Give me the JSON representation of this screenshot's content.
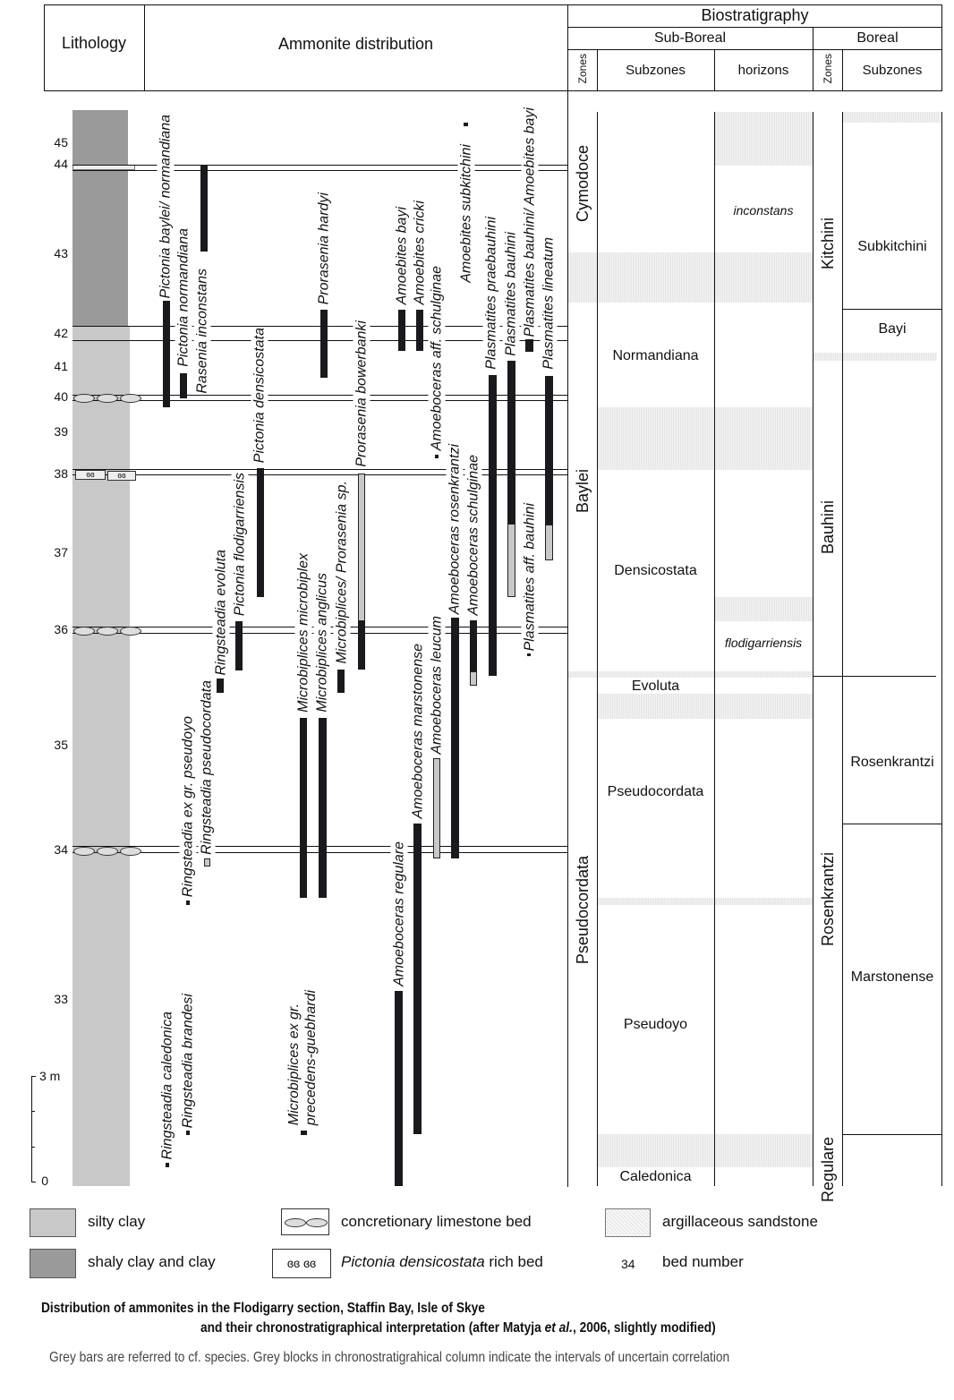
{
  "header": {
    "lithology": "Lithology",
    "ammonite_distribution": "Ammonite distribution",
    "biostratigraphy": "Biostratigraphy",
    "sub_boreal": "Sub-Boreal",
    "boreal": "Boreal",
    "zones": "Zones",
    "subzones": "Subzones",
    "horizons": "horizons",
    "zones2": "Zones",
    "subzones2": "Subzones"
  },
  "bed_numbers": [
    "45",
    "44",
    "43",
    "42",
    "41",
    "40",
    "39",
    "38",
    "37",
    "36",
    "35",
    "34",
    "33",
    "0"
  ],
  "scale_label": "3 m",
  "species": [
    "Pictonia baylei/ normandiana",
    "Pictonia normandiana",
    "Rasenia inconstans",
    "Pictonia densicostata",
    "Pictonia flodigarriensis",
    "Ringsteadia evoluta",
    "Ringsteadia pseudocordata",
    "Ringsteadia ex gr. pseudoyo",
    "Ringsteadia brandesi",
    "Ringsteadia caledonica",
    "Prorasenia hardyi",
    "Prorasenia bowerbanki",
    "Microbiplices/ Prorasenia sp.",
    "Microbiplices anglicus",
    "Microbiplices microbiplex",
    "Microbiplices ex gr.\nprecedens-guebhardi",
    "Amoebites bayi",
    "Amoebites cricki",
    "Amoeboceras aff. schulginae",
    "Amoebites subkitchini",
    "Plasmatites praebauhini",
    "Plasmatites bauhini",
    "Plasmatites bauhini/ Amoebites bayi",
    "Plasmatites lineatum",
    "Plasmatites aff. bauhini",
    "Amoeboceras rosenkrantzi",
    "Amoeboceras schulginae",
    "Amoeboceras leucum",
    "Amoeboceras marstonense",
    "Amoeboceras regulare"
  ],
  "sub_boreal_zones": [
    "Cymodoce",
    "Baylei",
    "Pseudocordata"
  ],
  "sub_boreal_subzones": [
    "Normandiana",
    "Densicostata",
    "Evoluta",
    "Pseudocordata",
    "Pseudoyo",
    "Caledonica"
  ],
  "horizons": [
    "inconstans",
    "flodigarriensis"
  ],
  "boreal_zones": [
    "Kitchini",
    "Bauhini",
    "Rosenkrantzi",
    "Regulare"
  ],
  "boreal_subzones": [
    "Subkitchini",
    "Bayi",
    "Rosenkrantzi",
    "Marstonense"
  ],
  "legend": {
    "silty_clay": "silty clay",
    "shaly_clay": "shaly clay and clay",
    "concretionary": "concretionary limestone bed",
    "pictonia_species": "Pictonia densicostata",
    "pictonia_suffix": " rich bed",
    "sandstone": "argillaceous sandstone",
    "bed_number_example": "34",
    "bed_number": "bed number"
  },
  "caption": {
    "line1": "Distribution of ammonites in the Flodigarry section, Staffin Bay, Isle of Skye",
    "line2_a": "and their chronostratigraphical interpretation (after Matyja ",
    "line2_em": "et al.",
    "line2_b": ", 2006, slightly modified)",
    "note": "Grey bars are referred to cf. species. Grey blocks in chronostratigrahical column indicate the intervals of uncertain correlation"
  },
  "colors": {
    "silty_clay": "#c8c8c8",
    "shaly_clay": "#9a9a9a",
    "bar": "#1a1a1e"
  }
}
